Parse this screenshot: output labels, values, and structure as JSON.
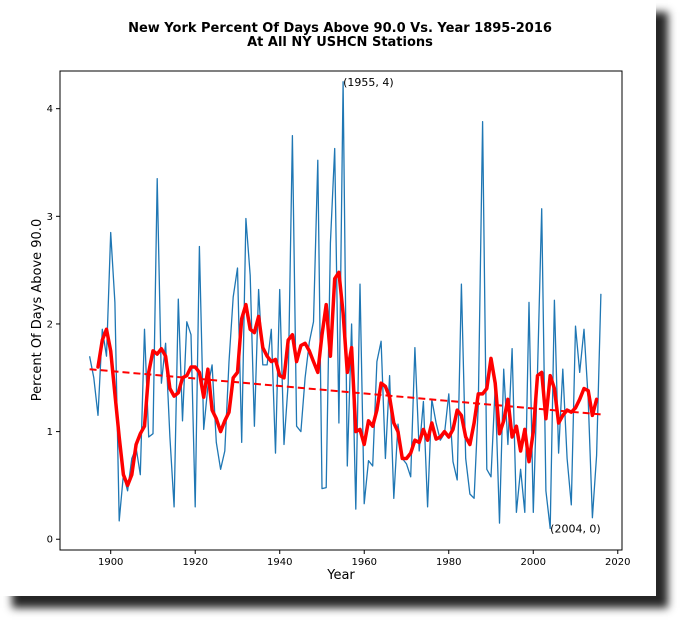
{
  "chart_data": {
    "type": "line",
    "title": "New York Percent Of Days Above 90.0 Vs. Year 1895-2016",
    "subtitle": "At All NY USHCN Stations",
    "xlabel": "Year",
    "ylabel": "Percent Of Days Above 90.0",
    "xlim": [
      1888,
      2021
    ],
    "ylim": [
      -0.1,
      4.35
    ],
    "xticks": [
      1900,
      1920,
      1940,
      1960,
      1980,
      2000,
      2020
    ],
    "yticks": [
      0,
      1,
      2,
      3,
      4
    ],
    "grid": false,
    "legend": "none",
    "annotations": [
      {
        "text": "(1955, 4)",
        "x": 1955,
        "y": 4.25
      },
      {
        "text": "(2004, 0)",
        "x": 2004,
        "y": 0.1
      }
    ],
    "series": [
      {
        "role": "annual",
        "color": "#1f77b4",
        "x": [
          1895,
          1896,
          1897,
          1898,
          1899,
          1900,
          1901,
          1902,
          1903,
          1904,
          1905,
          1906,
          1907,
          1908,
          1909,
          1910,
          1911,
          1912,
          1913,
          1914,
          1915,
          1916,
          1917,
          1918,
          1919,
          1920,
          1921,
          1922,
          1923,
          1924,
          1925,
          1926,
          1927,
          1928,
          1929,
          1930,
          1931,
          1932,
          1933,
          1934,
          1935,
          1936,
          1937,
          1938,
          1939,
          1940,
          1941,
          1942,
          1943,
          1944,
          1945,
          1946,
          1947,
          1948,
          1949,
          1950,
          1951,
          1952,
          1953,
          1954,
          1955,
          1956,
          1957,
          1958,
          1959,
          1960,
          1961,
          1962,
          1963,
          1964,
          1965,
          1966,
          1967,
          1968,
          1969,
          1970,
          1971,
          1972,
          1973,
          1974,
          1975,
          1976,
          1977,
          1978,
          1979,
          1980,
          1981,
          1982,
          1983,
          1984,
          1985,
          1986,
          1987,
          1988,
          1989,
          1990,
          1991,
          1992,
          1993,
          1994,
          1995,
          1996,
          1997,
          1998,
          1999,
          2000,
          2001,
          2002,
          2003,
          2004,
          2005,
          2006,
          2007,
          2008,
          2009,
          2010,
          2011,
          2012,
          2013,
          2014,
          2015,
          2016
        ],
        "y": [
          1.7,
          1.5,
          1.15,
          1.95,
          1.7,
          2.85,
          2.2,
          0.17,
          0.6,
          0.45,
          0.75,
          0.85,
          0.6,
          1.95,
          0.95,
          0.98,
          3.35,
          1.45,
          1.82,
          0.95,
          0.3,
          2.23,
          1.1,
          2.02,
          1.9,
          0.3,
          2.72,
          1.02,
          1.42,
          1.62,
          0.9,
          0.65,
          0.82,
          1.65,
          2.25,
          2.52,
          0.9,
          2.98,
          2.45,
          1.05,
          2.32,
          1.62,
          1.62,
          1.95,
          0.8,
          2.32,
          0.88,
          1.45,
          3.75,
          1.05,
          1.0,
          1.5,
          1.83,
          2.02,
          3.52,
          0.47,
          0.48,
          2.75,
          3.63,
          1.08,
          4.25,
          0.68,
          2.0,
          0.28,
          2.37,
          0.33,
          0.73,
          0.68,
          1.65,
          1.84,
          0.75,
          1.52,
          0.38,
          1.07,
          0.75,
          0.7,
          0.58,
          1.78,
          0.82,
          1.28,
          0.3,
          1.3,
          1.08,
          0.92,
          0.98,
          1.35,
          0.72,
          0.55,
          2.37,
          0.75,
          0.42,
          0.38,
          1.25,
          3.88,
          0.65,
          0.58,
          1.42,
          0.15,
          1.58,
          0.88,
          1.77,
          0.25,
          0.65,
          0.25,
          2.2,
          0.25,
          1.55,
          3.07,
          0.45,
          0.1,
          2.22,
          0.8,
          1.58,
          0.75,
          0.32,
          1.98,
          1.55,
          1.95,
          1.3,
          0.2,
          0.78,
          2.28
        ]
      },
      {
        "role": "moving-average",
        "color": "#ff0000",
        "x": [
          1897,
          1898,
          1899,
          1900,
          1901,
          1902,
          1903,
          1904,
          1905,
          1906,
          1907,
          1908,
          1909,
          1910,
          1911,
          1912,
          1913,
          1914,
          1915,
          1916,
          1917,
          1918,
          1919,
          1920,
          1921,
          1922,
          1923,
          1924,
          1925,
          1926,
          1927,
          1928,
          1929,
          1930,
          1931,
          1932,
          1933,
          1934,
          1935,
          1936,
          1937,
          1938,
          1939,
          1940,
          1941,
          1942,
          1943,
          1944,
          1945,
          1946,
          1947,
          1948,
          1949,
          1950,
          1951,
          1952,
          1953,
          1954,
          1955,
          1956,
          1957,
          1958,
          1959,
          1960,
          1961,
          1962,
          1963,
          1964,
          1965,
          1966,
          1967,
          1968,
          1969,
          1970,
          1971,
          1972,
          1973,
          1974,
          1975,
          1976,
          1977,
          1978,
          1979,
          1980,
          1981,
          1982,
          1983,
          1984,
          1985,
          1986,
          1987,
          1988,
          1989,
          1990,
          1991,
          1992,
          1993,
          1994,
          1995,
          1996,
          1997,
          1998,
          1999,
          2000,
          2001,
          2002,
          2003,
          2004,
          2005,
          2006,
          2007,
          2008,
          2009,
          2010,
          2011,
          2012,
          2013,
          2014,
          2015
        ],
        "y": [
          1.6,
          1.85,
          1.95,
          1.75,
          1.35,
          0.95,
          0.6,
          0.5,
          0.6,
          0.88,
          0.98,
          1.05,
          1.55,
          1.75,
          1.72,
          1.77,
          1.7,
          1.4,
          1.33,
          1.36,
          1.5,
          1.52,
          1.6,
          1.6,
          1.55,
          1.32,
          1.58,
          1.2,
          1.12,
          1.0,
          1.1,
          1.18,
          1.5,
          1.55,
          2.05,
          2.18,
          1.95,
          1.92,
          2.07,
          1.78,
          1.7,
          1.65,
          1.67,
          1.52,
          1.5,
          1.85,
          1.9,
          1.65,
          1.8,
          1.82,
          1.75,
          1.65,
          1.55,
          1.9,
          2.18,
          1.7,
          2.42,
          2.48,
          2.1,
          1.55,
          1.78,
          1.0,
          1.02,
          0.88,
          1.1,
          1.05,
          1.2,
          1.45,
          1.42,
          1.32,
          1.08,
          1.0,
          0.75,
          0.75,
          0.8,
          0.92,
          0.9,
          1.02,
          0.92,
          1.08,
          0.93,
          0.95,
          1.0,
          0.95,
          1.02,
          1.2,
          1.15,
          0.95,
          0.88,
          1.08,
          1.35,
          1.35,
          1.4,
          1.68,
          1.45,
          0.98,
          1.1,
          1.3,
          0.95,
          1.05,
          0.82,
          1.02,
          0.72,
          1.0,
          1.52,
          1.55,
          1.12,
          1.52,
          1.4,
          1.08,
          1.15,
          1.2,
          1.18,
          1.22,
          1.3,
          1.4,
          1.38,
          1.15,
          1.3
        ]
      },
      {
        "role": "trend",
        "color": "#ff0000",
        "x": [
          1895,
          2016
        ],
        "y": [
          1.58,
          1.16
        ]
      }
    ]
  },
  "colors": {
    "annual_line": "#1f77b4",
    "smoothed_line": "#ff0000",
    "trend_line": "#ff0000",
    "axes": "#000000"
  }
}
